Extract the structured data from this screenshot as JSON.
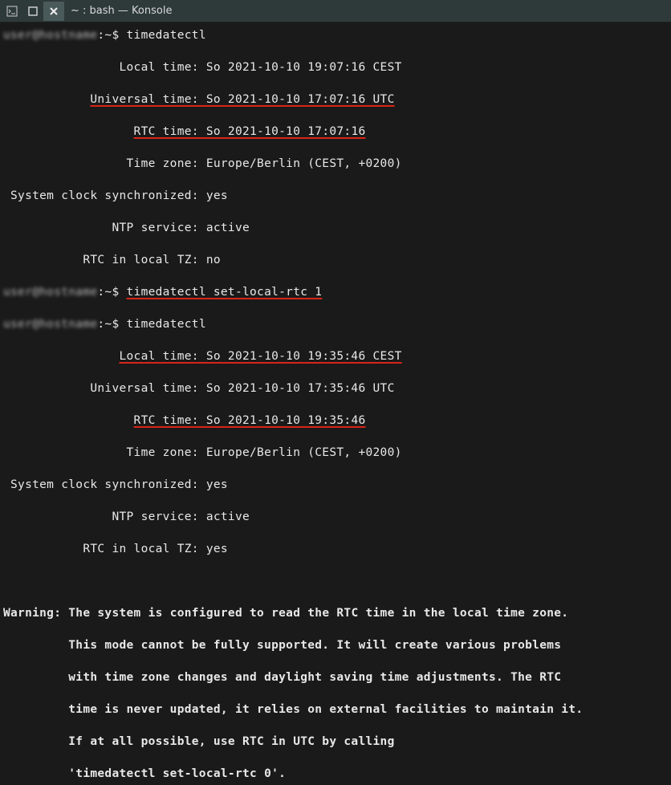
{
  "window": {
    "title": "~ : bash — Konsole"
  },
  "colors": {
    "titlebar_bg": "#2e3a3a",
    "terminal_bg": "#1a1a1a",
    "text": "#e8e8e8",
    "underline": "#d92418"
  },
  "prompt": {
    "user_host_blur": "user@hostname",
    "path_symbol": ":~$ "
  },
  "block1": {
    "cmd": "timedatectl",
    "lines": [
      {
        "label": "Local time",
        "value": "So 2021-10-10 19:07:16 CEST",
        "underline": false
      },
      {
        "label": "Universal time",
        "value": "So 2021-10-10 17:07:16 UTC",
        "underline": true
      },
      {
        "label": "RTC time",
        "value": "So 2021-10-10 17:07:16",
        "underline": true
      },
      {
        "label": "Time zone",
        "value": "Europe/Berlin (CEST, +0200)",
        "underline": false
      },
      {
        "label": "System clock synchronized",
        "value": "yes",
        "underline": false
      },
      {
        "label": "NTP service",
        "value": "active",
        "underline": false
      },
      {
        "label": "RTC in local TZ",
        "value": "no",
        "underline": false
      }
    ]
  },
  "cmd2": "timedatectl set-local-rtc 1",
  "block2": {
    "cmd": "timedatectl",
    "lines": [
      {
        "label": "Local time",
        "value": "So 2021-10-10 19:35:46 CEST",
        "underline": true
      },
      {
        "label": "Universal time",
        "value": "So 2021-10-10 17:35:46 UTC",
        "underline": false
      },
      {
        "label": "RTC time",
        "value": "So 2021-10-10 19:35:46",
        "underline": true
      },
      {
        "label": "Time zone",
        "value": "Europe/Berlin (CEST, +0200)",
        "underline": false
      },
      {
        "label": "System clock synchronized",
        "value": "yes",
        "underline": false
      },
      {
        "label": "NTP service",
        "value": "active",
        "underline": false
      },
      {
        "label": "RTC in local TZ",
        "value": "yes",
        "underline": false
      }
    ]
  },
  "warning": {
    "prefix": "Warning:",
    "text": "The system is configured to read the RTC time in the local time zone.\n         This mode cannot be fully supported. It will create various problems\n         with time zone changes and daylight saving time adjustments. The RTC\n         time is never updated, it relies on external facilities to maintain it.\n         If at all possible, use RTC in UTC by calling\n         'timedatectl set-local-rtc 0'."
  },
  "layout": {
    "label_width": 26
  }
}
